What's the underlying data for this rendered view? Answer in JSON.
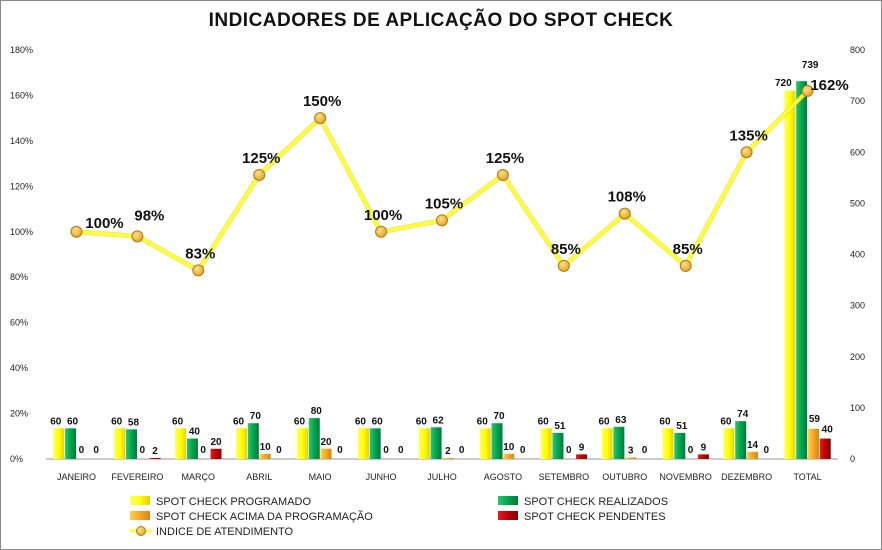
{
  "chart_data": {
    "type": "bar",
    "title": "INDICADORES DE APLICAÇÃO DO SPOT CHECK",
    "categories": [
      "JANEIRO",
      "FEVEREIRO",
      "MARÇO",
      "ABRIL",
      "MAIO",
      "JUNHO",
      "JULHO",
      "AGOSTO",
      "SETEMBRO",
      "OUTUBRO",
      "NOVEMBRO",
      "DEZEMBRO",
      "TOTAL"
    ],
    "series": [
      {
        "name": "SPOT CHECK PROGRAMADO",
        "axis": "right",
        "color": "#ffff00",
        "values": [
          60,
          60,
          60,
          60,
          60,
          60,
          60,
          60,
          60,
          60,
          60,
          60,
          720
        ]
      },
      {
        "name": "SPOT CHECK REALIZADOS",
        "axis": "right",
        "color": "#00a550",
        "values": [
          60,
          58,
          40,
          70,
          80,
          60,
          62,
          70,
          51,
          63,
          51,
          74,
          739
        ]
      },
      {
        "name": "SPOT CHECK ACIMA DA PROGRAMAÇÃO",
        "axis": "right",
        "color": "#f5a623",
        "values": [
          0,
          0,
          0,
          10,
          20,
          0,
          2,
          10,
          0,
          3,
          0,
          14,
          59
        ]
      },
      {
        "name": "SPOT CHECK PENDENTES",
        "axis": "right",
        "color": "#c00000",
        "values": [
          0,
          2,
          20,
          0,
          0,
          0,
          0,
          0,
          9,
          0,
          9,
          0,
          40
        ]
      },
      {
        "name": "INDICE DE ATENDIMENTO",
        "type": "line",
        "axis": "left",
        "color": "#ffff33",
        "marker_color": "#f0b429",
        "values": [
          100,
          98,
          83,
          125,
          150,
          100,
          105,
          125,
          85,
          108,
          85,
          135,
          162
        ],
        "labels": [
          "100%",
          "98%",
          "83%",
          "125%",
          "150%",
          "100%",
          "105%",
          "125%",
          "85%",
          "108%",
          "85%",
          "135%",
          "162%"
        ]
      }
    ],
    "y_left": {
      "ylim": [
        0,
        180
      ],
      "ticks": [
        "0%",
        "20%",
        "40%",
        "60%",
        "80%",
        "100%",
        "120%",
        "140%",
        "160%",
        "180%"
      ]
    },
    "y_right": {
      "ylim": [
        0,
        800
      ],
      "ticks": [
        "0",
        "100",
        "200",
        "300",
        "400",
        "500",
        "600",
        "700",
        "800"
      ]
    },
    "grid": false,
    "legend_position": "bottom"
  }
}
